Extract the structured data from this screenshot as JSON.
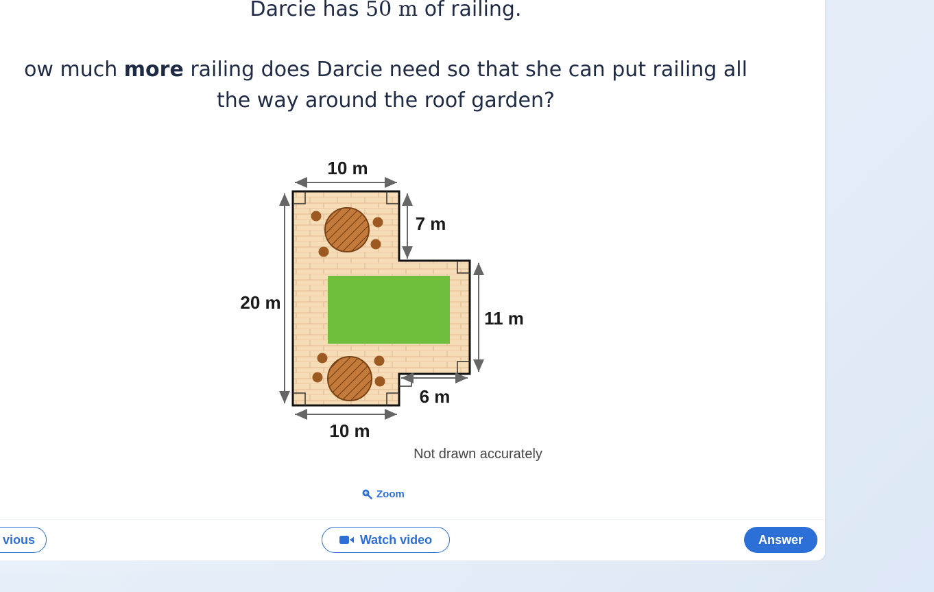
{
  "question": {
    "line1_before": "Darcie has ",
    "line1_math": "50 m",
    "line1_after": " of railing.",
    "line2_before": "ow much ",
    "line2_bold": "more",
    "line2_after": " railing does Darcie need so that she can put railing all",
    "line3": "the way around the roof garden?"
  },
  "diagram": {
    "labels": {
      "top": "10 m",
      "left": "20 m",
      "right_upper": "7 m",
      "right_lower": "11 m",
      "inner_bottom": "6 m",
      "bottom": "10 m"
    },
    "note": "Not drawn accurately",
    "colors": {
      "deck": "#f7dcb8",
      "plank_lines": "#e2b98a",
      "lawn": "#6fbf3d",
      "table": "#c47a3a",
      "chair": "#9c5a22",
      "outline": "#111111",
      "arrow": "#666666"
    }
  },
  "zoom": {
    "label": "Zoom",
    "icon": "zoom-in-icon"
  },
  "footer": {
    "previous_label": "vious",
    "video_label": "Watch video",
    "video_icon": "video-camera-icon",
    "answer_label": "Answer",
    "accent": "#2c6fd6"
  }
}
